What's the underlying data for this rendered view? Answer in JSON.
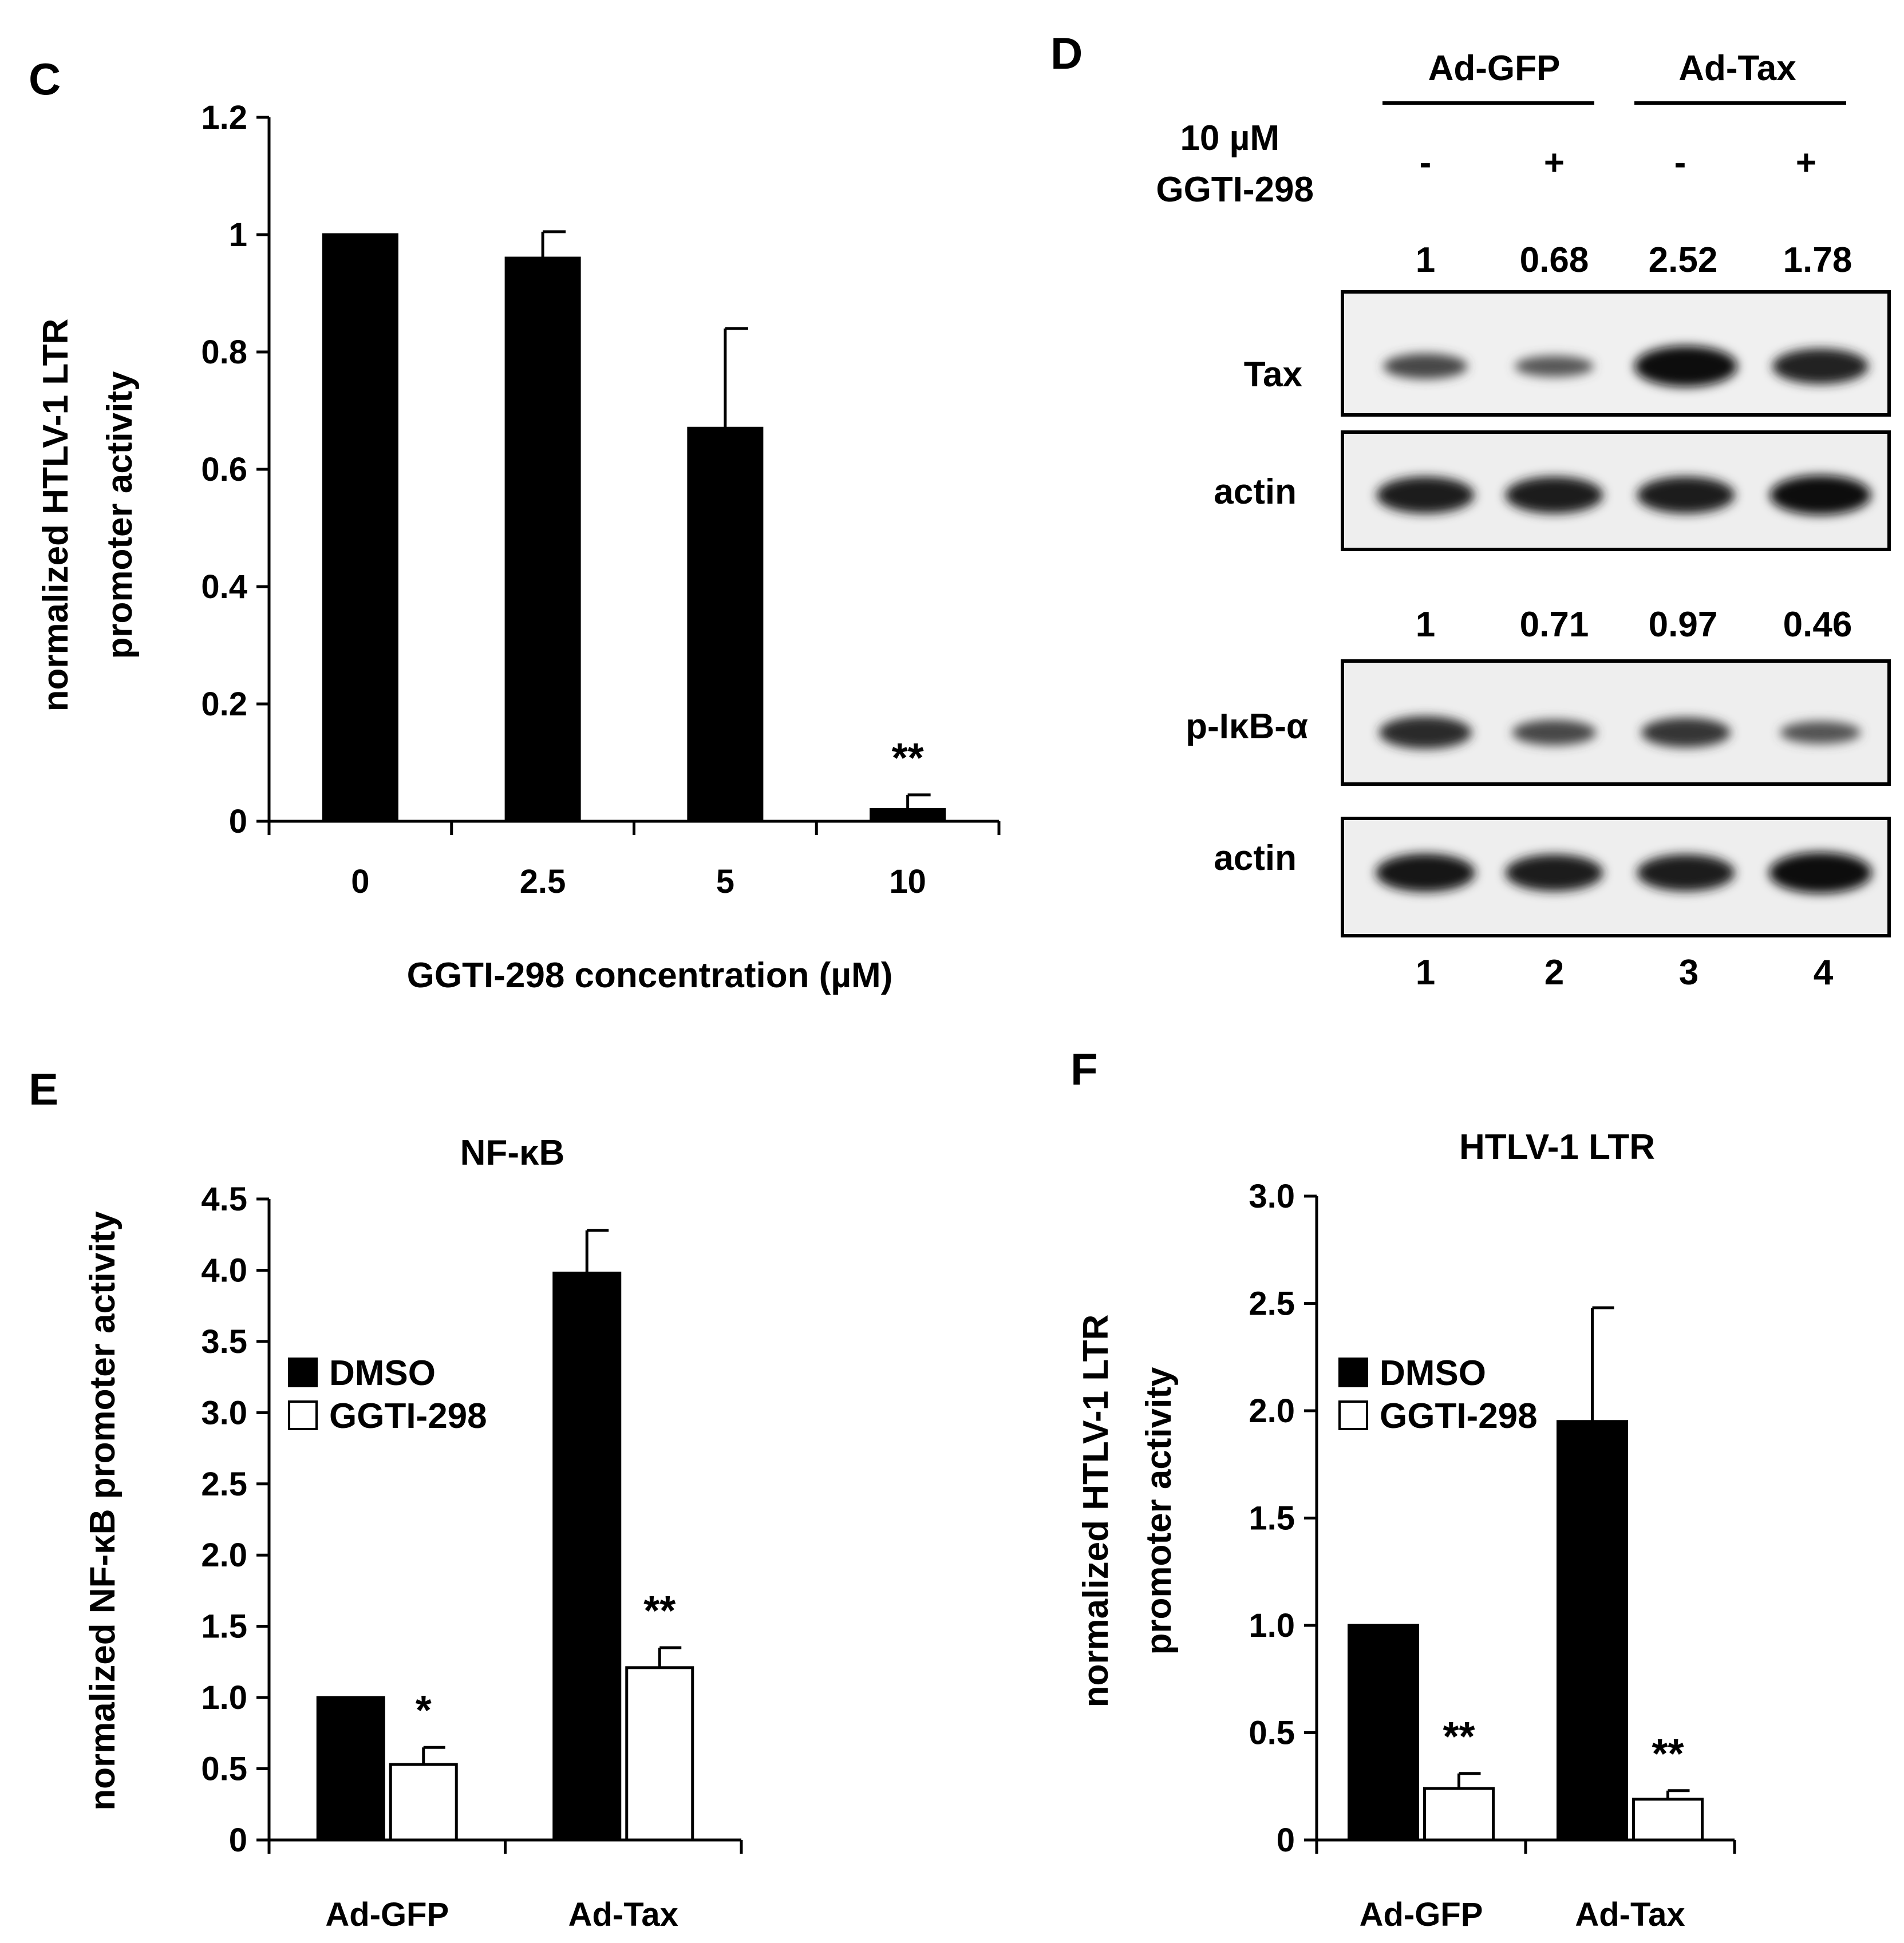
{
  "panels": {
    "C": "C",
    "D": "D",
    "E": "E",
    "F": "F"
  },
  "colors": {
    "black_bar": "#000000",
    "white_bar": "#ffffff",
    "stroke": "#000000"
  },
  "chart_data": [
    {
      "id": "C",
      "type": "bar",
      "title": "",
      "xlabel": "GGTI-298 concentration (µM)",
      "ylabel": [
        "normalized HTLV-1 LTR",
        "promoter activity"
      ],
      "categories": [
        "0",
        "2.5",
        "5",
        "10"
      ],
      "series": [
        {
          "values": [
            1.0,
            0.96,
            0.67,
            0.02
          ],
          "errors": [
            0.0,
            0.045,
            0.17,
            0.025
          ],
          "color": "#000000"
        }
      ],
      "significance": [
        "",
        "",
        "",
        "**"
      ],
      "ylim": [
        0,
        1.2
      ],
      "yticks": [
        "0",
        "0.2",
        "0.4",
        "0.6",
        "0.8",
        "1",
        "1.2"
      ],
      "grid": false
    },
    {
      "id": "E",
      "type": "bar",
      "title": "NF-κB",
      "xlabel": "",
      "ylabel": [
        "normalized NF-κB promoter activity"
      ],
      "categories": [
        "Ad-GFP",
        "Ad-Tax"
      ],
      "series": [
        {
          "name": "DMSO",
          "values": [
            1.0,
            3.98
          ],
          "errors": [
            0.0,
            0.3
          ],
          "color": "#000000"
        },
        {
          "name": "GGTI-298",
          "values": [
            0.53,
            1.21
          ],
          "errors": [
            0.12,
            0.14
          ],
          "color": "#ffffff"
        }
      ],
      "significance": [
        [
          "",
          "*"
        ],
        [
          "",
          "**"
        ]
      ],
      "ylim": [
        0,
        4.5
      ],
      "yticks": [
        "0",
        "0.5",
        "1.0",
        "1.5",
        "2.0",
        "2.5",
        "3.0",
        "3.5",
        "4.0",
        "4.5"
      ],
      "legend": "left",
      "grid": false
    },
    {
      "id": "F",
      "type": "bar",
      "title": "HTLV-1 LTR",
      "xlabel": "",
      "ylabel": [
        "normalized HTLV-1 LTR",
        "promoter activity"
      ],
      "categories": [
        "Ad-GFP",
        "Ad-Tax"
      ],
      "series": [
        {
          "name": "DMSO",
          "values": [
            1.0,
            1.95
          ],
          "errors": [
            0.0,
            0.53
          ],
          "color": "#000000"
        },
        {
          "name": "GGTI-298",
          "values": [
            0.24,
            0.19
          ],
          "errors": [
            0.07,
            0.04
          ],
          "color": "#ffffff"
        }
      ],
      "significance": [
        [
          "",
          "**"
        ],
        [
          "",
          "**"
        ]
      ],
      "ylim": [
        0,
        3.0
      ],
      "yticks": [
        "0",
        "0.5",
        "1.0",
        "1.5",
        "2.0",
        "2.5",
        "3.0"
      ],
      "legend": "left",
      "grid": false
    }
  ],
  "blot": {
    "groups": [
      "Ad-GFP",
      "Ad-Tax"
    ],
    "treatment_label": [
      "10 µM",
      "GGTI-298"
    ],
    "treatment": [
      "-",
      "+",
      "-",
      "+"
    ],
    "lanes": [
      "1",
      "2",
      "3",
      "4"
    ],
    "blocks": [
      {
        "quant": [
          "1",
          "0.68",
          "2.52",
          "1.78"
        ],
        "rows": [
          {
            "label": "Tax",
            "intensity": [
              0.45,
              0.3,
              1.0,
              0.8
            ]
          },
          {
            "label": "actin",
            "intensity": [
              0.85,
              0.85,
              0.85,
              0.95
            ]
          }
        ]
      },
      {
        "quant": [
          "1",
          "0.71",
          "0.97",
          "0.46"
        ],
        "rows": [
          {
            "label": "p-IκB-α",
            "intensity": [
              0.7,
              0.45,
              0.6,
              0.35
            ]
          },
          {
            "label": "actin",
            "intensity": [
              0.9,
              0.85,
              0.85,
              1.0
            ]
          }
        ]
      }
    ]
  }
}
